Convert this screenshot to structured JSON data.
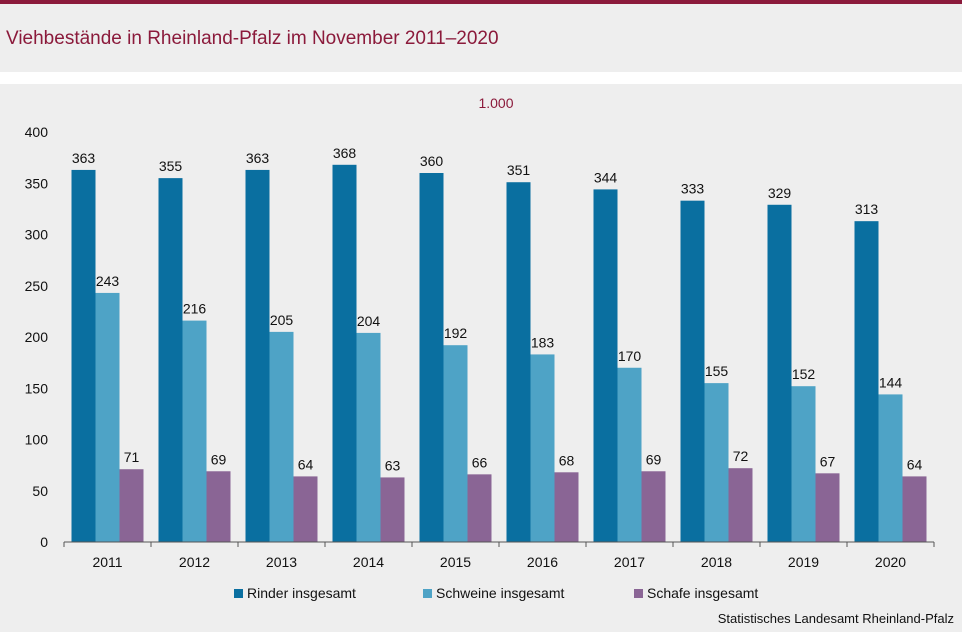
{
  "title": "Viehbestände in Rheinland-Pfalz im November 2011–2020",
  "source": "Statistisches Landesamt Rheinland-Pfalz",
  "colors": {
    "brand": "#8b1a3b",
    "rinder": "#0a6fa0",
    "schweine": "#4ea3c6",
    "schafe": "#8a6595"
  },
  "chart_data": {
    "type": "bar",
    "unit_label": "1.000",
    "categories": [
      "2011",
      "2012",
      "2013",
      "2014",
      "2015",
      "2016",
      "2017",
      "2018",
      "2019",
      "2020"
    ],
    "series": [
      {
        "name": "Rinder insgesamt",
        "color": "#0a6fa0",
        "values": [
          363,
          355,
          363,
          368,
          360,
          351,
          344,
          333,
          329,
          313
        ]
      },
      {
        "name": "Schweine insgesamt",
        "color": "#4ea3c6",
        "values": [
          243,
          216,
          205,
          204,
          192,
          183,
          170,
          155,
          152,
          144
        ]
      },
      {
        "name": "Schafe insgesamt",
        "color": "#8a6595",
        "values": [
          71,
          69,
          64,
          63,
          66,
          68,
          69,
          72,
          67,
          64
        ]
      }
    ],
    "ylim": [
      0,
      400
    ],
    "yticks": [
      0,
      50,
      100,
      150,
      200,
      250,
      300,
      350,
      400
    ],
    "grid": false,
    "legend": "bottom"
  }
}
